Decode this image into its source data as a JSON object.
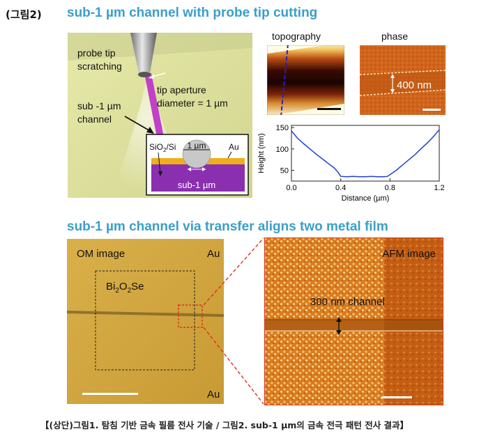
{
  "figure_label": "(그림2)",
  "top": {
    "title": "sub-1 µm channel with probe tip cutting",
    "schematic": {
      "probe_label_1": "probe tip",
      "probe_label_2": "scratching",
      "aperture_label_1": "tip aperture",
      "aperture_label_2": "diameter = 1 µm",
      "channel_label_1": "sub -1 µm",
      "channel_label_2": "channel",
      "inset": {
        "substrate": "SiO",
        "substrate_sub": "2",
        "substrate_rest": "/Si",
        "tip": "1 µm",
        "metal": "Au",
        "gap": "sub-1 µm"
      }
    },
    "topography_title": "topography",
    "phase_title": "phase",
    "phase_annotation": "400 nm",
    "profile": {
      "chart_data": {
        "type": "line",
        "xlabel": "Distance (µm)",
        "ylabel": "Height (nm)",
        "xlim": [
          0,
          1.2
        ],
        "ylim": [
          25,
          155
        ],
        "x_ticks": [
          "0.0",
          "0.4",
          "0.8",
          "1.2"
        ],
        "y_ticks": [
          "50",
          "100",
          "150"
        ],
        "x": [
          0,
          0.05,
          0.1,
          0.15,
          0.2,
          0.25,
          0.3,
          0.35,
          0.38,
          0.4,
          0.45,
          0.5,
          0.55,
          0.6,
          0.65,
          0.7,
          0.75,
          0.78,
          0.8,
          0.85,
          0.9,
          0.95,
          1.0,
          1.05,
          1.1,
          1.15,
          1.2
        ],
        "y": [
          142,
          125,
          112,
          100,
          88,
          77,
          66,
          55,
          45,
          36,
          35,
          36,
          35,
          35,
          36,
          35,
          35,
          36,
          40,
          50,
          62,
          74,
          86,
          100,
          113,
          128,
          145
        ],
        "color": "#1f3fd1"
      }
    }
  },
  "bottom": {
    "title": "sub-1 µm channel via transfer aligns two metal film",
    "om_label": "OM image",
    "au_top": "Au",
    "au_bottom": "Au",
    "material": "Bi",
    "material_sub1": "2",
    "material_o": "O",
    "material_sub2": "2",
    "material_se": "Se",
    "afm_label": "AFM image",
    "channel_annotation": "300 nm channel"
  },
  "caption": "【(상단)그림1. 탐침 기반 금속 필름 전사 기술 / 그림2. sub-1 µm의 금속 전극 패턴 전사 결과】"
}
